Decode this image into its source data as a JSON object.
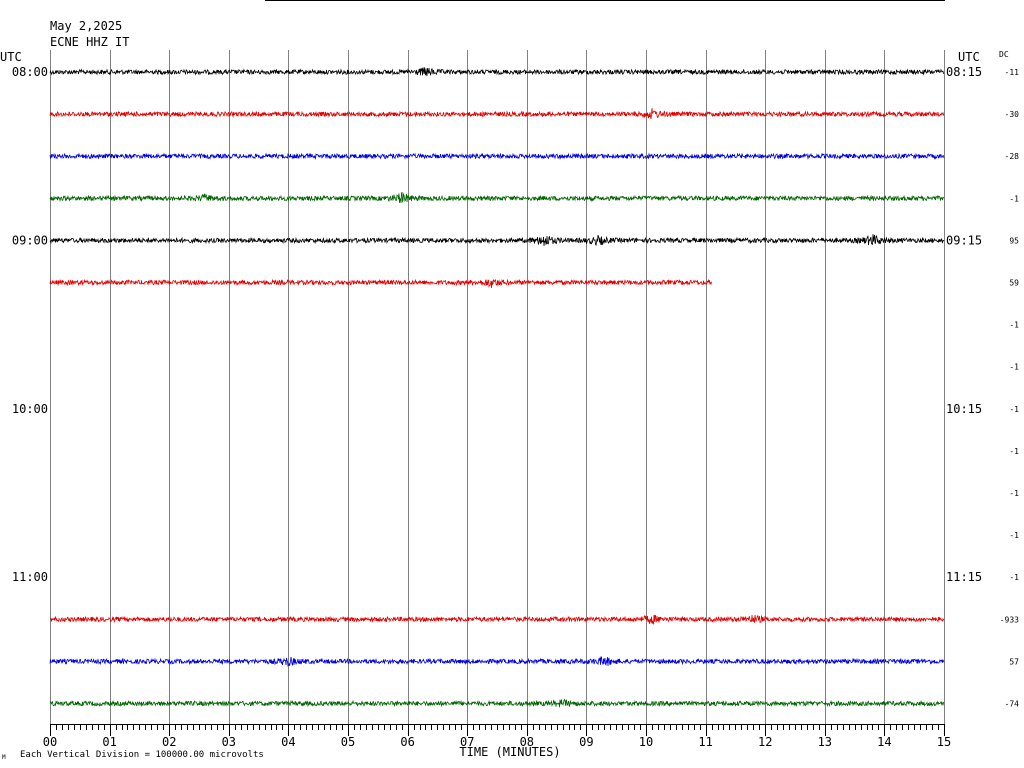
{
  "header": {
    "date": "May 2,2025",
    "station": "ECNE HHZ IT"
  },
  "left_timezone": "UTC",
  "right_timezone": "UTC",
  "dc_header": "DC",
  "footer": {
    "scale_note": "Each Vertical Division = 100000.00 microvolts"
  },
  "colors": {
    "black": "#000000",
    "red": "#e00000",
    "blue": "#0000e0",
    "green": "#006400",
    "grid": "#808080"
  },
  "chart_data": {
    "type": "line",
    "title": "",
    "xlabel": "TIME (MINUTES)",
    "ylabel": "",
    "x_ticks": [
      "00",
      "01",
      "02",
      "03",
      "04",
      "05",
      "06",
      "07",
      "08",
      "09",
      "10",
      "11",
      "12",
      "13",
      "14",
      "15"
    ],
    "xlim": [
      0,
      15
    ],
    "grid": true,
    "rows": [
      {
        "left": "08:00",
        "right": "08:15",
        "dc": "-11",
        "color": "black",
        "end_min": 15,
        "events": [
          [
            6.3,
            2.2
          ]
        ]
      },
      {
        "left": "",
        "right": "",
        "dc": "-30",
        "color": "red",
        "end_min": 15,
        "events": [
          [
            10.1,
            2.4
          ]
        ]
      },
      {
        "left": "",
        "right": "",
        "dc": "-28",
        "color": "blue",
        "end_min": 15,
        "events": []
      },
      {
        "left": "",
        "right": "",
        "dc": "-1",
        "color": "green",
        "end_min": 15,
        "events": [
          [
            2.6,
            1.6
          ],
          [
            5.9,
            2.8
          ]
        ]
      },
      {
        "left": "09:00",
        "right": "09:15",
        "dc": "95",
        "color": "black",
        "end_min": 15,
        "events": [
          [
            8.3,
            3.2
          ],
          [
            9.2,
            2.2
          ],
          [
            13.8,
            3.0
          ]
        ]
      },
      {
        "left": "",
        "right": "",
        "dc": "59",
        "color": "red",
        "end_min": 11.1,
        "events": [
          [
            7.4,
            2.2
          ]
        ]
      },
      {
        "left": "",
        "right": "",
        "dc": "-1",
        "color": "blue",
        "end_min": 0,
        "events": []
      },
      {
        "left": "",
        "right": "",
        "dc": "-1",
        "color": "green",
        "end_min": 0,
        "events": []
      },
      {
        "left": "10:00",
        "right": "10:15",
        "dc": "-1",
        "color": "black",
        "end_min": 0,
        "events": []
      },
      {
        "left": "",
        "right": "",
        "dc": "-1",
        "color": "red",
        "end_min": 0,
        "events": []
      },
      {
        "left": "",
        "right": "",
        "dc": "-1",
        "color": "blue",
        "end_min": 0,
        "events": []
      },
      {
        "left": "",
        "right": "",
        "dc": "-1",
        "color": "green",
        "end_min": 0,
        "events": []
      },
      {
        "left": "11:00",
        "right": "11:15",
        "dc": "-1",
        "color": "black",
        "end_min": 0,
        "events": []
      },
      {
        "left": "",
        "right": "",
        "dc": "-933",
        "color": "red",
        "end_min": 15,
        "events": [
          [
            10.1,
            2.2
          ],
          [
            11.8,
            2.0
          ]
        ]
      },
      {
        "left": "",
        "right": "",
        "dc": "57",
        "color": "blue",
        "end_min": 15,
        "events": [
          [
            4.0,
            2.2
          ],
          [
            9.3,
            2.4
          ]
        ]
      },
      {
        "left": "",
        "right": "",
        "dc": "-74",
        "color": "green",
        "end_min": 15,
        "events": [
          [
            8.6,
            1.6
          ]
        ]
      }
    ]
  }
}
